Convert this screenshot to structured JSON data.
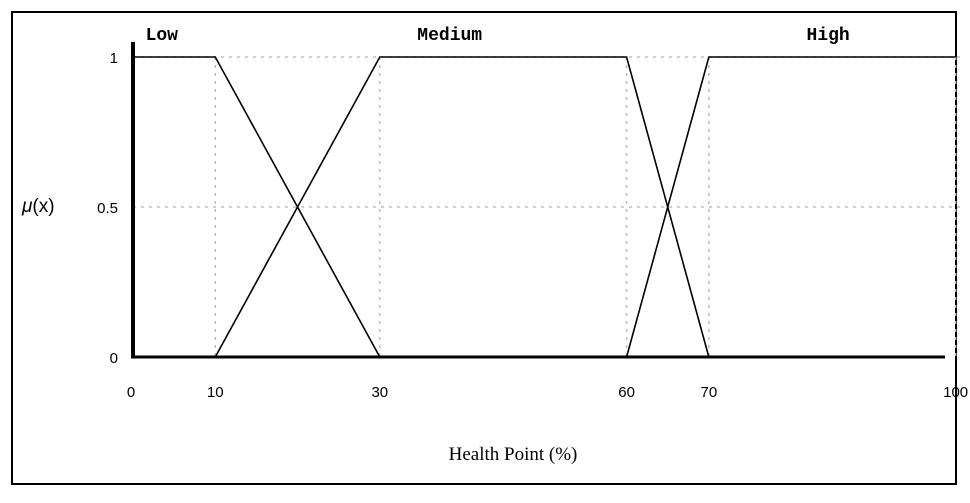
{
  "chart_data": {
    "type": "line",
    "xlabel": "Health Point (%)",
    "ylabel_mu": "μ",
    "ylabel_rest": "(x)",
    "x_ticks": [
      "0",
      "10",
      "30",
      "60",
      "70",
      "100"
    ],
    "x_tick_values": [
      0,
      10,
      30,
      60,
      70,
      100
    ],
    "y_ticks": [
      "0",
      "0.5",
      "1"
    ],
    "y_tick_values": [
      0,
      0.5,
      1
    ],
    "xlim": [
      0,
      106
    ],
    "ylim": [
      0,
      1
    ],
    "grid": "dotted",
    "series": [
      {
        "name": "Low",
        "x": [
          0,
          10,
          30
        ],
        "y": [
          1,
          1,
          0
        ]
      },
      {
        "name": "Medium",
        "x": [
          10,
          30,
          60,
          70
        ],
        "y": [
          0,
          1,
          1,
          0
        ]
      },
      {
        "name": "High",
        "x": [
          60,
          70,
          100
        ],
        "y": [
          0,
          1,
          1
        ]
      }
    ],
    "set_label_positions": [
      3.5,
      38.5,
      84.5
    ]
  },
  "colors": {
    "line": "#000000",
    "grid": "#bdbdbd",
    "axis": "#000000",
    "border": "#000000"
  }
}
